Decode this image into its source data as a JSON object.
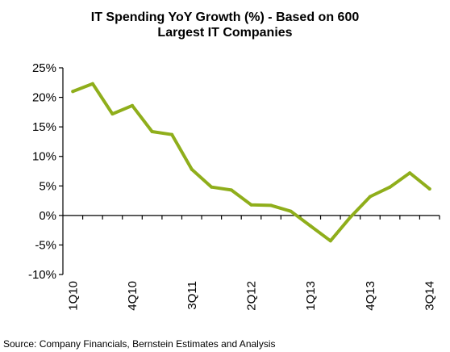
{
  "chart_data": {
    "type": "line",
    "title_lines": [
      "IT Spending YoY Growth (%) - Based on 600",
      "Largest IT Companies"
    ],
    "xlabel": "",
    "ylabel": "",
    "categories": [
      "1Q10",
      "2Q10",
      "3Q10",
      "4Q10",
      "1Q11",
      "2Q11",
      "3Q11",
      "4Q11",
      "1Q12",
      "2Q12",
      "3Q12",
      "4Q12",
      "1Q13",
      "2Q13",
      "3Q13",
      "4Q13",
      "1Q14",
      "2Q14",
      "3Q14"
    ],
    "x_tick_labels": [
      "1Q10",
      "4Q10",
      "3Q11",
      "2Q12",
      "1Q13",
      "4Q13",
      "3Q14"
    ],
    "x_tick_label_every": 3,
    "series": [
      {
        "values": [
          21.0,
          22.3,
          17.2,
          18.6,
          14.2,
          13.7,
          7.8,
          4.8,
          4.3,
          1.8,
          1.7,
          0.7,
          -1.8,
          -4.3,
          -0.3,
          3.2,
          4.8,
          7.2,
          4.5
        ]
      }
    ],
    "ylim": [
      -10,
      25
    ],
    "y_ticks": [
      -10,
      -5,
      0,
      5,
      10,
      15,
      20,
      25
    ],
    "y_tick_format": "percent",
    "grid": false,
    "legend": "none",
    "line_color": "#8fae1b",
    "axis_color": "#000000"
  },
  "footer": {
    "source": "Source: Company Financials, Bernstein Estimates and Analysis"
  }
}
